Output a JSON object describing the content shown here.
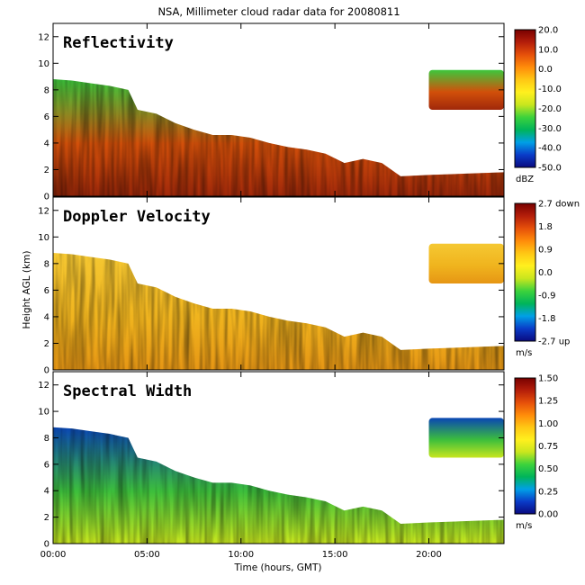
{
  "chart_data": {
    "type": "heatmap",
    "title": "NSA, Millimeter cloud radar data for 20080811",
    "xlabel": "Time (hours, GMT)",
    "ylabel": "Height AGL (km)",
    "xlim": [
      0,
      24
    ],
    "ylim": [
      0,
      13
    ],
    "x_ticks": [
      0,
      5,
      10,
      15,
      20
    ],
    "x_tick_labels": [
      "00:00",
      "05:00",
      "10:00",
      "15:00",
      "20:00"
    ],
    "y_ticks": [
      0,
      2,
      4,
      6,
      8,
      10,
      12
    ],
    "y_tick_labels": [
      "0",
      "2",
      "4",
      "6",
      "8",
      "10",
      "12"
    ],
    "cloud_extent": [
      {
        "t": 0.0,
        "top": 8.8
      },
      {
        "t": 1.0,
        "top": 8.7
      },
      {
        "t": 2.0,
        "top": 8.5
      },
      {
        "t": 3.0,
        "top": 8.3
      },
      {
        "t": 4.0,
        "top": 8.0
      },
      {
        "t": 4.5,
        "top": 6.5
      },
      {
        "t": 5.5,
        "top": 6.2
      },
      {
        "t": 6.5,
        "top": 5.5
      },
      {
        "t": 7.5,
        "top": 5.0
      },
      {
        "t": 8.5,
        "top": 4.6
      },
      {
        "t": 9.5,
        "top": 4.6
      },
      {
        "t": 10.5,
        "top": 4.4
      },
      {
        "t": 11.5,
        "top": 4.0
      },
      {
        "t": 12.5,
        "top": 3.7
      },
      {
        "t": 13.5,
        "top": 3.5
      },
      {
        "t": 14.5,
        "top": 3.2
      },
      {
        "t": 15.5,
        "top": 2.5
      },
      {
        "t": 16.5,
        "top": 2.8
      },
      {
        "t": 17.5,
        "top": 2.5
      },
      {
        "t": 18.5,
        "top": 1.5
      },
      {
        "t": 20.0,
        "top": 1.6
      },
      {
        "t": 22.0,
        "top": 1.7
      },
      {
        "t": 24.0,
        "top": 1.8
      }
    ],
    "upper_layer": {
      "t_start": 20.0,
      "t_end": 24.0,
      "base": 6.5,
      "top": 9.5
    },
    "panels": [
      {
        "title": "Reflectivity",
        "unit": "dBZ",
        "colorbar_range": [
          -50,
          20
        ],
        "colorbar_ticks": [
          "20.0",
          "10.0",
          "0.0",
          "-10.0",
          "-20.0",
          "-30.0",
          "-40.0",
          "-50.0"
        ]
      },
      {
        "title": "Doppler Velocity",
        "unit": "m/s",
        "colorbar_range": [
          -2.7,
          2.7
        ],
        "colorbar_ticks": [
          "2.7 down",
          "1.8",
          "0.9",
          "0.0",
          "-0.9",
          "-1.8",
          "-2.7 up"
        ]
      },
      {
        "title": "Spectral Width",
        "unit": "m/s",
        "colorbar_range": [
          0,
          1.5
        ],
        "colorbar_ticks": [
          "1.50",
          "1.25",
          "1.00",
          "0.75",
          "0.50",
          "0.25",
          "0.00"
        ]
      }
    ],
    "colormap": [
      "#0a0a80",
      "#0a3cc8",
      "#00a0e6",
      "#00b45a",
      "#3cd23c",
      "#c8e61e",
      "#fff01e",
      "#ffc814",
      "#ff8c0a",
      "#e6500a",
      "#b41e0a",
      "#780000"
    ]
  }
}
